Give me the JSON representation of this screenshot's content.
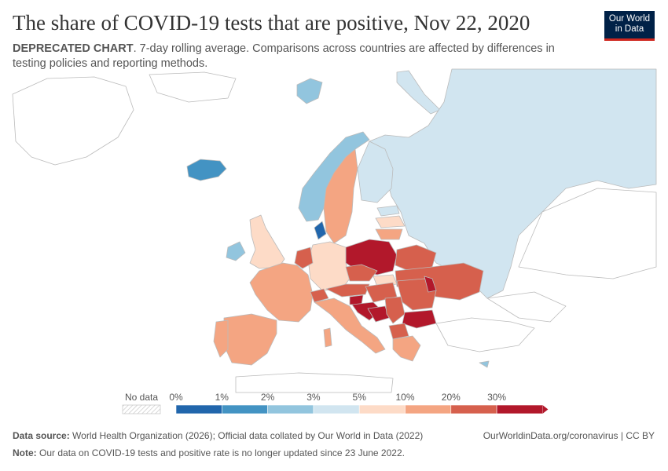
{
  "header": {
    "title": "The share of COVID-19 tests that are positive, Nov 22, 2020",
    "subtitle_bold": "DEPRECATED CHART",
    "subtitle_rest": ". 7-day rolling average. Comparisons across countries are affected by differences in testing policies and reporting methods.",
    "logo_line1": "Our World",
    "logo_line2": "in Data"
  },
  "legend": {
    "no_data_label": "No data",
    "bins": [
      "0%",
      "1%",
      "2%",
      "3%",
      "5%",
      "10%",
      "20%",
      "30%"
    ],
    "colors": [
      "#2166ac",
      "#4393c3",
      "#92c5de",
      "#d1e5f0",
      "#fddbc7",
      "#f4a582",
      "#d6604d",
      "#b2182b"
    ],
    "no_data_color": "#ffffff"
  },
  "map_colors": {
    "border": "#bbbbbb",
    "land_no_data": "#ffffff"
  },
  "footer": {
    "source_label": "Data source:",
    "source_text": " World Health Organization (2026); Official data collated by Our World in Data (2022)",
    "note_label": "Note:",
    "note_text": " Our data on COVID-19 tests and positive rate is no longer updated since 23 June 2022.",
    "url": "OurWorldinData.org/coronavirus | CC BY"
  }
}
